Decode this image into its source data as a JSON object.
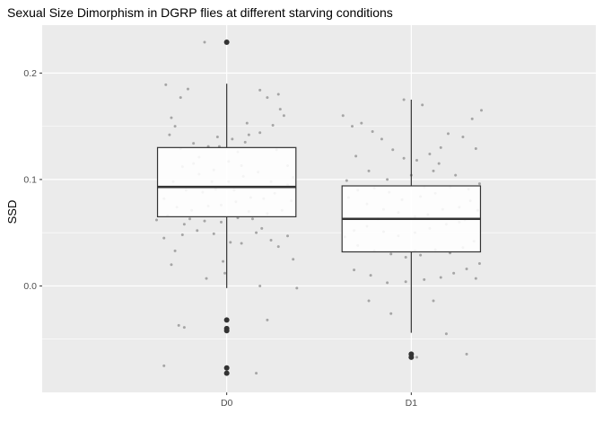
{
  "chart_data": {
    "type": "boxplot",
    "title": "Sexual Size Dimorphism in DGRP flies at different starving conditions",
    "xlabel": "",
    "ylabel": "SSD",
    "categories": [
      "D0",
      "D1"
    ],
    "ylim": [
      -0.1,
      0.245
    ],
    "yticks": [
      0.0,
      0.1,
      0.2
    ],
    "ytick_labels": [
      "0.0",
      "0.1",
      "0.2"
    ],
    "grid": true,
    "colors": {
      "panel": "#ebebeb",
      "grid": "#ffffff",
      "box_fill": "#ffffff",
      "box_line": "#333333",
      "jitter": "#999999",
      "outlier": "#333333"
    },
    "boxes": [
      {
        "category": "D0",
        "q1": 0.065,
        "median": 0.093,
        "q3": 0.13,
        "whisker_low": -0.002,
        "whisker_high": 0.19,
        "outliers": [
          0.229,
          -0.032,
          -0.04,
          -0.042,
          -0.077,
          -0.082
        ]
      },
      {
        "category": "D1",
        "q1": 0.032,
        "median": 0.063,
        "q3": 0.094,
        "whisker_low": -0.044,
        "whisker_high": 0.175,
        "outliers": [
          -0.064,
          -0.067
        ]
      }
    ],
    "jitter_points": [
      [
        [
          -0.3,
          0.158
        ],
        [
          -0.28,
          0.15
        ],
        [
          -0.33,
          0.189
        ],
        [
          -0.21,
          0.185
        ],
        [
          -0.12,
          0.229
        ],
        [
          -0.25,
          0.177
        ],
        [
          -0.31,
          0.142
        ],
        [
          -0.18,
          0.134
        ],
        [
          -0.1,
          0.131
        ],
        [
          -0.04,
          0.131
        ],
        [
          0.03,
          0.138
        ],
        [
          0.1,
          0.135
        ],
        [
          0.18,
          0.144
        ],
        [
          0.25,
          0.151
        ],
        [
          0.31,
          0.16
        ],
        [
          0.22,
          0.177
        ],
        [
          0.18,
          0.184
        ],
        [
          0.28,
          0.18
        ],
        [
          0.29,
          0.166
        ],
        [
          0.11,
          0.153
        ],
        [
          0.01,
          0.117
        ],
        [
          -0.07,
          0.109
        ],
        [
          -0.15,
          0.105
        ],
        [
          -0.24,
          0.112
        ],
        [
          -0.29,
          0.098
        ],
        [
          -0.22,
          0.09
        ],
        [
          -0.13,
          0.088
        ],
        [
          -0.06,
          0.091
        ],
        [
          0.04,
          0.09
        ],
        [
          0.09,
          0.103
        ],
        [
          0.17,
          0.107
        ],
        [
          0.24,
          0.098
        ],
        [
          0.33,
          0.095
        ],
        [
          0.36,
          0.102
        ],
        [
          0.2,
          0.082
        ],
        [
          0.13,
          0.083
        ],
        [
          0.05,
          0.079
        ],
        [
          -0.03,
          0.076
        ],
        [
          -0.1,
          0.075
        ],
        [
          -0.19,
          0.071
        ],
        [
          -0.27,
          0.074
        ],
        [
          -0.32,
          0.066
        ],
        [
          -0.2,
          0.063
        ],
        [
          -0.12,
          0.061
        ],
        [
          -0.03,
          0.06
        ],
        [
          0.06,
          0.064
        ],
        [
          0.14,
          0.063
        ],
        [
          0.22,
          0.068
        ],
        [
          0.3,
          0.071
        ],
        [
          0.35,
          0.08
        ],
        [
          -0.38,
          0.062
        ],
        [
          -0.34,
          0.045
        ],
        [
          -0.28,
          0.033
        ],
        [
          -0.3,
          0.02
        ],
        [
          -0.24,
          0.048
        ],
        [
          -0.16,
          0.052
        ],
        [
          -0.07,
          0.049
        ],
        [
          0.02,
          0.041
        ],
        [
          0.08,
          0.04
        ],
        [
          0.16,
          0.05
        ],
        [
          0.24,
          0.043
        ],
        [
          0.28,
          0.037
        ],
        [
          0.33,
          0.047
        ],
        [
          0.36,
          0.025
        ],
        [
          0.19,
          0.054
        ],
        [
          -0.02,
          0.023
        ],
        [
          -0.01,
          0.012
        ],
        [
          -0.11,
          0.007
        ],
        [
          0.18,
          0.0
        ],
        [
          0.38,
          -0.002
        ],
        [
          -0.26,
          -0.037
        ],
        [
          -0.23,
          -0.039
        ],
        [
          0.22,
          -0.032
        ],
        [
          -0.34,
          -0.075
        ],
        [
          0.16,
          -0.082
        ],
        [
          -0.25,
          0.129
        ],
        [
          -0.15,
          0.121
        ],
        [
          -0.05,
          0.14
        ],
        [
          0.06,
          0.126
        ],
        [
          0.12,
          0.142
        ],
        [
          0.27,
          0.128
        ],
        [
          0.33,
          0.113
        ],
        [
          -0.34,
          0.082
        ],
        [
          -0.08,
          0.098
        ],
        [
          0.08,
          0.113
        ],
        [
          0.26,
          0.087
        ],
        [
          -0.18,
          0.115
        ],
        [
          0.01,
          0.098
        ],
        [
          0.12,
          0.07
        ],
        [
          -0.23,
          0.058
        ]
      ],
      [
        [
          -0.37,
          0.16
        ],
        [
          -0.32,
          0.15
        ],
        [
          -0.27,
          0.153
        ],
        [
          -0.21,
          0.145
        ],
        [
          -0.16,
          0.138
        ],
        [
          -0.1,
          0.128
        ],
        [
          -0.04,
          0.12
        ],
        [
          0.03,
          0.118
        ],
        [
          0.1,
          0.124
        ],
        [
          0.16,
          0.13
        ],
        [
          0.2,
          0.143
        ],
        [
          0.28,
          0.14
        ],
        [
          0.33,
          0.157
        ],
        [
          0.38,
          0.165
        ],
        [
          0.06,
          0.17
        ],
        [
          -0.04,
          0.175
        ],
        [
          0.12,
          0.108
        ],
        [
          0.24,
          0.104
        ],
        [
          0.35,
          0.129
        ],
        [
          0.37,
          0.096
        ],
        [
          0.31,
          0.091
        ],
        [
          0.21,
          0.093
        ],
        [
          0.13,
          0.087
        ],
        [
          0.05,
          0.084
        ],
        [
          -0.05,
          0.081
        ],
        [
          -0.12,
          0.088
        ],
        [
          -0.2,
          0.092
        ],
        [
          -0.29,
          0.09
        ],
        [
          -0.34,
          0.083
        ],
        [
          -0.24,
          0.077
        ],
        [
          -0.15,
          0.072
        ],
        [
          -0.07,
          0.069
        ],
        [
          0.02,
          0.065
        ],
        [
          0.09,
          0.067
        ],
        [
          0.17,
          0.072
        ],
        [
          0.26,
          0.074
        ],
        [
          0.32,
          0.08
        ],
        [
          0.36,
          0.071
        ],
        [
          0.29,
          0.062
        ],
        [
          0.19,
          0.058
        ],
        [
          0.1,
          0.054
        ],
        [
          0.02,
          0.05
        ],
        [
          -0.07,
          0.047
        ],
        [
          -0.15,
          0.051
        ],
        [
          -0.24,
          0.056
        ],
        [
          -0.31,
          0.052
        ],
        [
          -0.36,
          0.046
        ],
        [
          -0.29,
          0.038
        ],
        [
          -0.2,
          0.033
        ],
        [
          -0.11,
          0.03
        ],
        [
          -0.03,
          0.027
        ],
        [
          0.05,
          0.029
        ],
        [
          0.13,
          0.034
        ],
        [
          0.21,
          0.031
        ],
        [
          0.28,
          0.036
        ],
        [
          0.34,
          0.042
        ],
        [
          0.37,
          0.021
        ],
        [
          0.3,
          0.016
        ],
        [
          0.23,
          0.012
        ],
        [
          0.16,
          0.008
        ],
        [
          0.07,
          0.006
        ],
        [
          -0.03,
          0.004
        ],
        [
          -0.13,
          0.003
        ],
        [
          -0.22,
          0.01
        ],
        [
          -0.31,
          0.015
        ],
        [
          0.12,
          -0.014
        ],
        [
          -0.23,
          -0.014
        ],
        [
          -0.11,
          -0.026
        ],
        [
          0.19,
          -0.045
        ],
        [
          0.3,
          -0.064
        ],
        [
          0.03,
          -0.067
        ],
        [
          -0.3,
          0.122
        ],
        [
          -0.23,
          0.108
        ],
        [
          -0.13,
          0.1
        ],
        [
          0.0,
          0.104
        ],
        [
          0.15,
          0.115
        ],
        [
          -0.35,
          0.099
        ],
        [
          0.07,
          0.093
        ],
        [
          0.26,
          0.06
        ],
        [
          -0.18,
          0.063
        ],
        [
          0.02,
          0.033
        ],
        [
          0.35,
          0.007
        ]
      ]
    ]
  }
}
